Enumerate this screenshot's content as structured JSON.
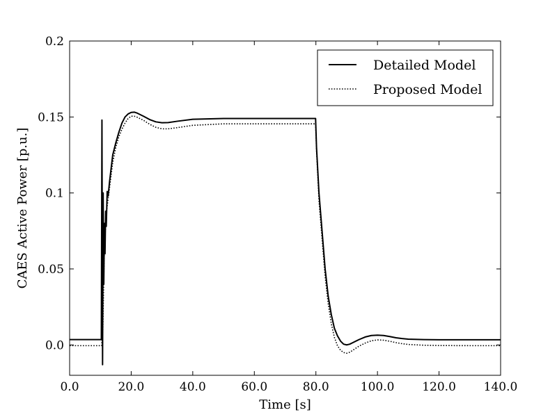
{
  "chart_data": {
    "type": "line",
    "title": "",
    "xlabel": "Time [s]",
    "ylabel": "CAES Active Power [p.u.]",
    "xlim": [
      0,
      140
    ],
    "ylim": [
      -0.02,
      0.2
    ],
    "x_ticks": [
      0,
      20,
      40,
      60,
      80,
      100,
      120,
      140
    ],
    "x_tick_labels": [
      "0.0",
      "20.0",
      "40.0",
      "60.0",
      "80.0",
      "100.0",
      "120.0",
      "140.0"
    ],
    "y_ticks": [
      0.0,
      0.05,
      0.1,
      0.15,
      0.2
    ],
    "y_tick_labels": [
      "0.0",
      "0.05",
      "0.1",
      "0.15",
      "0.2"
    ],
    "grid": false,
    "legend_position": "top-right",
    "colors": {
      "line": "#000000"
    },
    "series": [
      {
        "name": "Detailed Model",
        "style": "solid",
        "x": [
          0,
          10.3,
          10.5,
          10.7,
          10.9,
          11.1,
          11.3,
          11.5,
          11.7,
          11.9,
          12.2,
          12.5,
          13,
          14,
          15,
          16,
          17,
          18,
          19,
          20,
          21,
          22,
          24,
          26,
          28,
          30,
          32,
          35,
          40,
          50,
          60,
          70,
          79.9,
          80.2,
          81,
          82,
          83,
          84,
          85,
          86,
          87,
          88,
          89,
          90,
          91,
          92,
          94,
          96,
          98,
          100,
          102,
          104,
          106,
          108,
          110,
          115,
          120,
          130,
          140
        ],
        "y": [
          0.0035,
          0.0035,
          0.148,
          -0.013,
          0.1,
          0.04,
          0.08,
          0.06,
          0.088,
          0.078,
          0.101,
          0.098,
          0.108,
          0.125,
          0.133,
          0.14,
          0.146,
          0.15,
          0.152,
          0.153,
          0.1532,
          0.1525,
          0.1505,
          0.1483,
          0.1468,
          0.1462,
          0.1463,
          0.1472,
          0.1485,
          0.149,
          0.149,
          0.149,
          0.149,
          0.13,
          0.1,
          0.075,
          0.05,
          0.032,
          0.02,
          0.011,
          0.006,
          0.0025,
          0.0005,
          0.0,
          0.0005,
          0.0015,
          0.0035,
          0.0052,
          0.0062,
          0.0064,
          0.0062,
          0.0055,
          0.0047,
          0.0042,
          0.0038,
          0.0035,
          0.0034,
          0.0034,
          0.0034
        ]
      },
      {
        "name": "Proposed Model",
        "style": "dotted",
        "x": [
          0,
          10.4,
          10.8,
          11.2,
          11.6,
          12,
          12.5,
          13,
          14,
          15,
          16,
          17,
          18,
          19,
          20,
          21,
          22,
          24,
          26,
          28,
          30,
          32,
          35,
          40,
          50,
          60,
          70,
          79.9,
          80.2,
          81,
          82,
          83,
          84,
          85,
          86,
          87,
          88,
          89,
          90,
          91,
          92,
          94,
          96,
          98,
          100,
          102,
          104,
          106,
          108,
          110,
          115,
          120,
          130,
          140
        ],
        "y": [
          -0.0005,
          -0.0005,
          0.01,
          0.055,
          0.075,
          0.088,
          0.096,
          0.104,
          0.12,
          0.13,
          0.137,
          0.142,
          0.146,
          0.149,
          0.1505,
          0.1505,
          0.1498,
          0.1478,
          0.1452,
          0.1432,
          0.1422,
          0.1422,
          0.143,
          0.1445,
          0.1455,
          0.1455,
          0.1455,
          0.1455,
          0.128,
          0.095,
          0.07,
          0.045,
          0.027,
          0.014,
          0.005,
          -0.0005,
          -0.0035,
          -0.005,
          -0.0055,
          -0.0048,
          -0.0035,
          -0.0008,
          0.0012,
          0.0027,
          0.0033,
          0.0031,
          0.0024,
          0.0015,
          0.0008,
          0.0003,
          -0.0002,
          -0.0004,
          -0.0005,
          -0.0005
        ]
      }
    ]
  }
}
